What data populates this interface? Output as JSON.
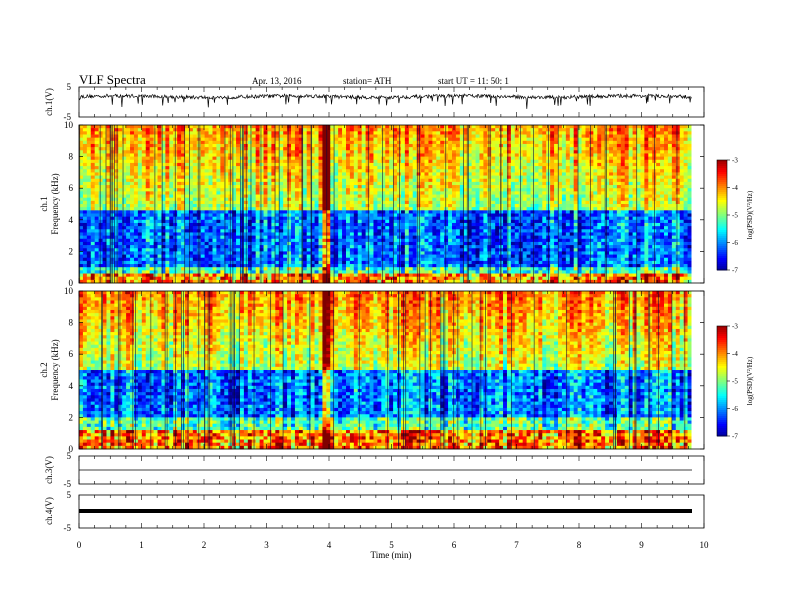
{
  "header": {
    "title": "VLF  Spectra",
    "date": "Apr. 13, 2016",
    "station": "station= ATH",
    "start": "start  UT  =    11: 50: 1"
  },
  "chart_data": [
    {
      "type": "line",
      "panel": "ch1-waveform",
      "ylabel": "ch.1(V)",
      "ylim": [
        -5,
        5
      ],
      "yticks": [
        "5",
        "-5"
      ],
      "x_range_min": [
        0,
        9.8
      ],
      "baseline_v": 1.8,
      "noise_amplitude_v": 0.6
    },
    {
      "type": "heatmap",
      "panel": "ch1-spectrogram",
      "ylabel": "ch.1",
      "ylabel2": "Frequency  (kHz)",
      "ylim": [
        0,
        10
      ],
      "yticks": [
        "0",
        "2",
        "4",
        "6",
        "8",
        "10"
      ],
      "colorbar": {
        "label": "log(PSD)(V²/Hz)",
        "ticks": [
          "-3",
          "-4",
          "-5",
          "-6",
          "-7"
        ],
        "range": [
          -7,
          -3
        ]
      },
      "features": {
        "broadband_burst_min": 3.95,
        "strong_below_khz": 0.6,
        "dark_band_khz": [
          1.0,
          4.5
        ]
      }
    },
    {
      "type": "heatmap",
      "panel": "ch2-spectrogram",
      "ylabel": "ch.2",
      "ylabel2": "Frequency  (kHz)",
      "ylim": [
        0,
        10
      ],
      "yticks": [
        "0",
        "2",
        "4",
        "6",
        "8",
        "10"
      ],
      "colorbar": {
        "label": "log(PSD)(V²/Hz)",
        "ticks": [
          "-3",
          "-4",
          "-5",
          "-6",
          "-7"
        ],
        "range": [
          -7,
          -3
        ]
      },
      "features": {
        "broadband_burst_min": 3.95,
        "strong_below_khz": 1.2,
        "dark_band_khz": [
          2.0,
          5.0
        ]
      }
    },
    {
      "type": "line",
      "panel": "ch3-waveform",
      "ylabel": "ch.3(V)",
      "ylim": [
        -5,
        5
      ],
      "yticks": [
        "5",
        "-5"
      ],
      "x_range_min": [
        0,
        9.8
      ],
      "value_v": 0
    },
    {
      "type": "line",
      "panel": "ch4-waveform",
      "ylabel": "ch.4(V)",
      "ylim": [
        -5,
        5
      ],
      "yticks": [
        "5",
        "-5"
      ],
      "x_range_min": [
        0,
        9.8
      ],
      "value_v": 0
    }
  ],
  "xaxis": {
    "label": "Time  (min)",
    "ticks": [
      "0",
      "1",
      "2",
      "3",
      "4",
      "5",
      "6",
      "7",
      "8",
      "9",
      "10"
    ],
    "range": [
      0,
      10
    ]
  }
}
